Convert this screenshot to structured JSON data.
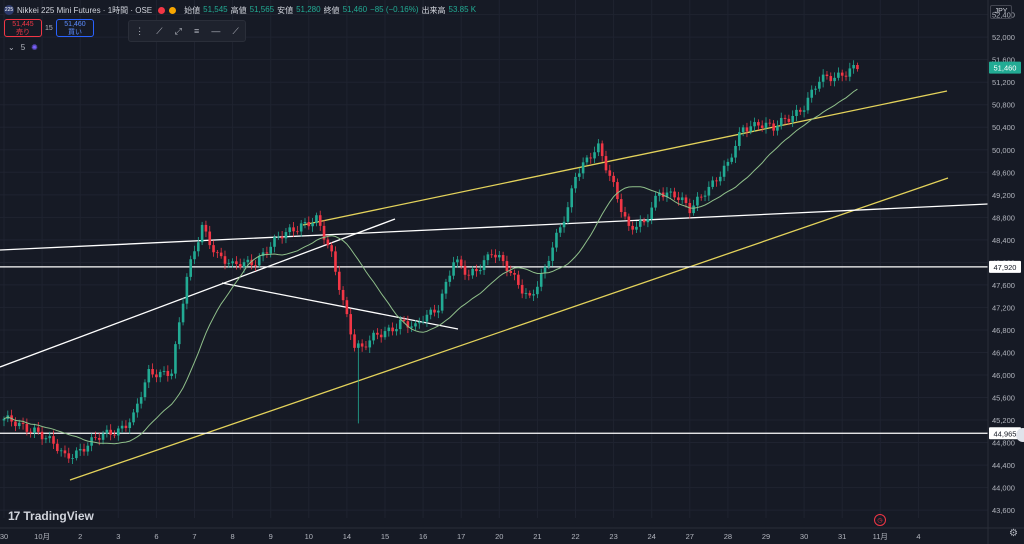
{
  "header": {
    "symbol_logo": "225",
    "title": "Nikkei 225 Mini Futures · 1時間 · OSE",
    "open_label": "始値",
    "open": "51,545",
    "high_label": "高値",
    "high": "51,565",
    "low_label": "安値",
    "low": "51,280",
    "close_label": "終値",
    "close": "51,460",
    "change": "−85 (−0.16%)",
    "volume_label": "出来高",
    "volume": "53.85 K"
  },
  "trade": {
    "sell_price": "51,445",
    "sell_label": "売り",
    "spread": "15",
    "buy_price": "51,460",
    "buy_label": "買い"
  },
  "indicator": {
    "label": "5"
  },
  "currency": "JPY",
  "logo_text": "TradingView",
  "colors": {
    "up": "#22ab94",
    "down": "#f23645",
    "ma": "#8fbf8a",
    "trend_yellow": "#e3d25b",
    "line_white": "#ffffff",
    "bg": "#161a25"
  },
  "icons": [
    "trend-line-icon",
    "ray-icon",
    "parallel-channel-icon",
    "horizontal-line-icon",
    "extended-line-icon"
  ],
  "chart_data": {
    "type": "candlestick",
    "y_ticks": [
      43600,
      44000,
      44400,
      44800,
      45200,
      45600,
      46000,
      46400,
      46800,
      47200,
      47600,
      48000,
      48400,
      48800,
      49200,
      49600,
      50000,
      50400,
      50800,
      51200,
      51600,
      52000,
      52400
    ],
    "y_tick_labels": [
      "43,600",
      "44,000",
      "44,400",
      "44,800",
      "45,200",
      "45,600",
      "46,000",
      "46,400",
      "46,800",
      "47,200",
      "47,600",
      "48,000",
      "48,400",
      "48,800",
      "49,200",
      "49,600",
      "50,000",
      "50,400",
      "50,800",
      "51,200",
      "51,600",
      "52,000",
      "52,400"
    ],
    "ylim": [
      43460,
      52660
    ],
    "x_tick_labels": [
      "30",
      "10月",
      "2",
      "3",
      "6",
      "7",
      "8",
      "9",
      "10",
      "14",
      "15",
      "16",
      "17",
      "20",
      "21",
      "22",
      "23",
      "24",
      "27",
      "28",
      "29",
      "30",
      "31",
      "11月",
      "4"
    ],
    "x_tick_indices": [
      0,
      10,
      20,
      30,
      40,
      50,
      60,
      70,
      80,
      90,
      100,
      110,
      120,
      130,
      140,
      150,
      160,
      170,
      180,
      190,
      200,
      210,
      220,
      230,
      240
    ],
    "current_price": 51460,
    "horizontal_levels": [
      {
        "price": 47920,
        "label": "47,920"
      },
      {
        "price": 44965,
        "label": "44,965"
      }
    ],
    "anchor_closes": [
      [
        0,
        45180
      ],
      [
        8,
        45050
      ],
      [
        16,
        44550
      ],
      [
        22,
        44760
      ],
      [
        30,
        45050
      ],
      [
        34,
        45260
      ],
      [
        38,
        46000
      ],
      [
        44,
        46100
      ],
      [
        48,
        47700
      ],
      [
        52,
        48650
      ],
      [
        56,
        48150
      ],
      [
        60,
        47900
      ],
      [
        66,
        48050
      ],
      [
        72,
        48400
      ],
      [
        78,
        48700
      ],
      [
        82,
        48750
      ],
      [
        86,
        48100
      ],
      [
        88,
        47600
      ],
      [
        92,
        46550
      ],
      [
        94,
        46450
      ],
      [
        98,
        46700
      ],
      [
        104,
        46950
      ],
      [
        108,
        46800
      ],
      [
        110,
        47000
      ],
      [
        114,
        47250
      ],
      [
        118,
        48000
      ],
      [
        122,
        47750
      ],
      [
        128,
        48200
      ],
      [
        134,
        47700
      ],
      [
        138,
        47400
      ],
      [
        142,
        47850
      ],
      [
        148,
        49000
      ],
      [
        150,
        49600
      ],
      [
        156,
        50000
      ],
      [
        160,
        49400
      ],
      [
        164,
        48600
      ],
      [
        168,
        48650
      ],
      [
        172,
        49300
      ],
      [
        176,
        49200
      ],
      [
        180,
        48900
      ],
      [
        184,
        49300
      ],
      [
        190,
        49700
      ],
      [
        194,
        50400
      ],
      [
        198,
        50500
      ],
      [
        202,
        50350
      ],
      [
        210,
        50800
      ],
      [
        214,
        51200
      ],
      [
        218,
        51300
      ],
      [
        222,
        51450
      ],
      [
        224,
        51460
      ]
    ],
    "wicks": [
      [
        93,
        45140
      ]
    ],
    "ma_period": 20
  }
}
